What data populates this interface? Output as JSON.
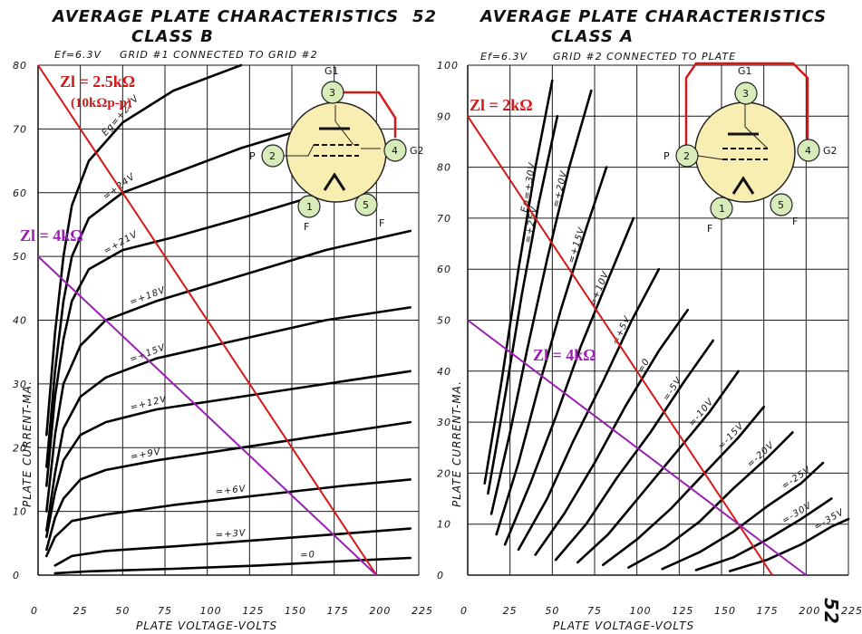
{
  "page_number": "52",
  "page_number_rotated": "52",
  "colors": {
    "grid": "#1a1a1a",
    "curve": "#000000",
    "load_red": "#d41818",
    "load_purple": "#9a1eb4",
    "tube_fill": "#f8eeb2",
    "pin_fill": "#d8ecba"
  },
  "tube_pins": {
    "p1": "1",
    "p2": "2",
    "p3": "3",
    "p4": "4",
    "p5": "5",
    "P": "P",
    "G1": "G1",
    "G2": "G2",
    "F": "F"
  },
  "chart_data": [
    {
      "type": "line",
      "title": "AVERAGE PLATE CHARACTERISTICS",
      "subtitle": "CLASS B",
      "conditions": "Ef=6.3V   GRID #1 CONNECTED TO GRID #2",
      "ef_text": "Ef=6.3V",
      "note_text": "GRID #1 CONNECTED TO GRID #2",
      "xlabel": "PLATE VOLTAGE-VOLTS",
      "ylabel": "PLATE CURRENT-MA.",
      "xlim": [
        0,
        225
      ],
      "ylim": [
        0,
        80
      ],
      "x_ticks": [
        0,
        25,
        50,
        75,
        100,
        125,
        150,
        175,
        200,
        225
      ],
      "y_ticks": [
        0,
        10,
        20,
        30,
        40,
        50,
        60,
        70,
        80
      ],
      "x_tick_labels": [
        "0",
        "25",
        "50",
        "75",
        "100",
        "125",
        "150",
        "175",
        "200",
        "225"
      ],
      "y_tick_labels": [
        "0",
        "10",
        "20",
        "30",
        "40",
        "50",
        "60",
        "70",
        "80"
      ],
      "grid": true,
      "series": [
        {
          "name": "Eg=+27V",
          "points": [
            [
              5,
              22
            ],
            [
              10,
              38
            ],
            [
              15,
              50
            ],
            [
              20,
              58
            ],
            [
              30,
              65
            ],
            [
              50,
              71
            ],
            [
              80,
              76
            ],
            [
              120,
              80
            ]
          ]
        },
        {
          "name": "=+24V",
          "points": [
            [
              5,
              17
            ],
            [
              10,
              32
            ],
            [
              15,
              43
            ],
            [
              20,
              50
            ],
            [
              30,
              56
            ],
            [
              50,
              60
            ],
            [
              80,
              63
            ],
            [
              120,
              67
            ],
            [
              170,
              71
            ]
          ]
        },
        {
          "name": "=+21V",
          "points": [
            [
              5,
              14
            ],
            [
              10,
              28
            ],
            [
              15,
              37
            ],
            [
              20,
              43
            ],
            [
              30,
              48
            ],
            [
              50,
              51
            ],
            [
              80,
              53
            ],
            [
              120,
              56
            ],
            [
              170,
              60
            ]
          ]
        },
        {
          "name": "=+18V",
          "points": [
            [
              5,
              10
            ],
            [
              10,
              22
            ],
            [
              15,
              30
            ],
            [
              25,
              36
            ],
            [
              40,
              40
            ],
            [
              70,
              43
            ],
            [
              120,
              47
            ],
            [
              170,
              51
            ],
            [
              220,
              54
            ]
          ]
        },
        {
          "name": "=+15V",
          "points": [
            [
              5,
              7
            ],
            [
              10,
              16
            ],
            [
              15,
              23
            ],
            [
              25,
              28
            ],
            [
              40,
              31
            ],
            [
              70,
              34
            ],
            [
              120,
              37
            ],
            [
              170,
              40
            ],
            [
              220,
              42
            ]
          ]
        },
        {
          "name": "=+12V",
          "points": [
            [
              5,
              6
            ],
            [
              10,
              13
            ],
            [
              15,
              18
            ],
            [
              25,
              22
            ],
            [
              40,
              24
            ],
            [
              70,
              26
            ],
            [
              120,
              28
            ],
            [
              170,
              30
            ],
            [
              220,
              32
            ]
          ]
        },
        {
          "name": "=+9V",
          "points": [
            [
              5,
              4
            ],
            [
              10,
              9
            ],
            [
              15,
              12
            ],
            [
              25,
              15
            ],
            [
              40,
              16.5
            ],
            [
              70,
              18
            ],
            [
              120,
              20
            ],
            [
              170,
              22
            ],
            [
              220,
              24
            ]
          ]
        },
        {
          "name": "=+6V",
          "points": [
            [
              5,
              3
            ],
            [
              10,
              6
            ],
            [
              20,
              8.5
            ],
            [
              40,
              9.5
            ],
            [
              80,
              11
            ],
            [
              130,
              12.5
            ],
            [
              180,
              14
            ],
            [
              220,
              15
            ]
          ]
        },
        {
          "name": "=+3V",
          "points": [
            [
              10,
              1.5
            ],
            [
              20,
              3
            ],
            [
              40,
              3.8
            ],
            [
              80,
              4.5
            ],
            [
              130,
              5.5
            ],
            [
              180,
              6.5
            ],
            [
              220,
              7.3
            ]
          ]
        },
        {
          "name": "=0",
          "points": [
            [
              10,
              0.3
            ],
            [
              30,
              0.6
            ],
            [
              80,
              1
            ],
            [
              130,
              1.5
            ],
            [
              180,
              2.2
            ],
            [
              220,
              2.7
            ]
          ]
        }
      ],
      "load_lines": [
        {
          "label": "Zl = 2.5kΩ",
          "sublabel": "(10kΩp-p)",
          "color": "#d41818",
          "points": [
            [
              0,
              80
            ],
            [
              200,
              0
            ]
          ]
        },
        {
          "label": "Zl = 4kΩ",
          "color": "#9a1eb4",
          "points": [
            [
              0,
              50
            ],
            [
              200,
              0
            ]
          ]
        }
      ]
    },
    {
      "type": "line",
      "title": "AVERAGE PLATE CHARACTERISTICS",
      "subtitle": "CLASS A",
      "conditions": "Ef=6.3V   GRID #2 CONNECTED TO PLATE",
      "ef_text": "Ef=6.3V",
      "note_text": "GRID #2 CONNECTED TO PLATE",
      "xlabel": "PLATE VOLTAGE-VOLTS",
      "ylabel": "PLATE CURRENT-MA.",
      "xlim": [
        0,
        225
      ],
      "ylim": [
        0,
        100
      ],
      "x_ticks": [
        0,
        25,
        50,
        75,
        100,
        125,
        150,
        175,
        200,
        225
      ],
      "y_ticks": [
        0,
        10,
        20,
        30,
        40,
        50,
        60,
        70,
        80,
        90,
        100
      ],
      "x_tick_labels": [
        "0",
        "25",
        "50",
        "75",
        "100",
        "125",
        "150",
        "175",
        "200",
        "225"
      ],
      "y_tick_labels": [
        "0",
        "10",
        "20",
        "30",
        "40",
        "50",
        "60",
        "70",
        "80",
        "90",
        "100"
      ],
      "grid": true,
      "series": [
        {
          "name": "Eg=+30V",
          "points": [
            [
              10,
              18
            ],
            [
              20,
              38
            ],
            [
              30,
              60
            ],
            [
              40,
              80
            ],
            [
              50,
              97
            ]
          ]
        },
        {
          "name": "=+25V",
          "points": [
            [
              12,
              16
            ],
            [
              22,
              35
            ],
            [
              32,
              55
            ],
            [
              42,
              73
            ],
            [
              53,
              90
            ]
          ]
        },
        {
          "name": "=+20V",
          "points": [
            [
              14,
              12
            ],
            [
              25,
              28
            ],
            [
              35,
              44
            ],
            [
              47,
              62
            ],
            [
              60,
              80
            ],
            [
              73,
              95
            ]
          ]
        },
        {
          "name": "=+15V",
          "points": [
            [
              17,
              8
            ],
            [
              30,
              22
            ],
            [
              42,
              37
            ],
            [
              55,
              52
            ],
            [
              70,
              68
            ],
            [
              82,
              80
            ]
          ]
        },
        {
          "name": "=+10V",
          "points": [
            [
              22,
              6
            ],
            [
              37,
              18
            ],
            [
              52,
              31
            ],
            [
              67,
              45
            ],
            [
              83,
              58
            ],
            [
              98,
              70
            ]
          ]
        },
        {
          "name": "=+5V",
          "points": [
            [
              30,
              5
            ],
            [
              47,
              15
            ],
            [
              62,
              26
            ],
            [
              80,
              38
            ],
            [
              97,
              50
            ],
            [
              113,
              60
            ]
          ]
        },
        {
          "name": "=0",
          "points": [
            [
              40,
              4
            ],
            [
              57,
              12
            ],
            [
              75,
              22
            ],
            [
              93,
              33
            ],
            [
              113,
              44
            ],
            [
              130,
              52
            ]
          ]
        },
        {
          "name": "=-5V",
          "points": [
            [
              52,
              3
            ],
            [
              70,
              10
            ],
            [
              88,
              19
            ],
            [
              108,
              28
            ],
            [
              128,
              38
            ],
            [
              145,
              46
            ]
          ]
        },
        {
          "name": "=-10V",
          "points": [
            [
              65,
              2.5
            ],
            [
              83,
              8
            ],
            [
              103,
              16
            ],
            [
              123,
              24
            ],
            [
              143,
              32
            ],
            [
              160,
              40
            ]
          ]
        },
        {
          "name": "=-15V",
          "points": [
            [
              80,
              2
            ],
            [
              100,
              7
            ],
            [
              120,
              13
            ],
            [
              140,
              20
            ],
            [
              160,
              27
            ],
            [
              175,
              33
            ]
          ]
        },
        {
          "name": "=-20V",
          "points": [
            [
              95,
              1.5
            ],
            [
              117,
              5.5
            ],
            [
              137,
              10.5
            ],
            [
              157,
              17
            ],
            [
              177,
              23
            ],
            [
              192,
              28
            ]
          ]
        },
        {
          "name": "=-25V",
          "points": [
            [
              115,
              1.2
            ],
            [
              137,
              4.5
            ],
            [
              157,
              8.5
            ],
            [
              177,
              13.5
            ],
            [
              197,
              18
            ],
            [
              210,
              22
            ]
          ]
        },
        {
          "name": "=-30V",
          "points": [
            [
              135,
              1
            ],
            [
              157,
              3.5
            ],
            [
              177,
              7
            ],
            [
              197,
              11
            ],
            [
              215,
              15
            ]
          ]
        },
        {
          "name": "=-35V",
          "points": [
            [
              155,
              0.8
            ],
            [
              177,
              3
            ],
            [
              197,
              6
            ],
            [
              215,
              9.5
            ],
            [
              225,
              11
            ]
          ]
        }
      ],
      "load_lines": [
        {
          "label": "Zl = 2kΩ",
          "color": "#d41818",
          "points": [
            [
              0,
              90
            ],
            [
              180,
              0
            ]
          ]
        },
        {
          "label": "Zl = 4kΩ",
          "color": "#9a1eb4",
          "points": [
            [
              0,
              50
            ],
            [
              200,
              0
            ]
          ]
        }
      ]
    }
  ]
}
